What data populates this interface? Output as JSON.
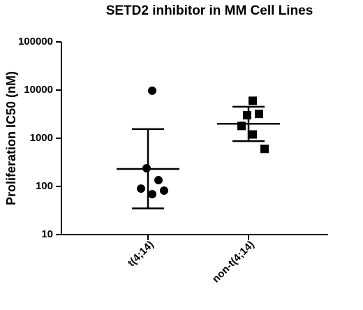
{
  "chart_data": {
    "type": "scatter",
    "title": "SETD2 inhibitor in MM Cell Lines",
    "y_label": "Proliferation IC50 (nM)",
    "categories": [
      "t(4;14)",
      "non-t(4;14)"
    ],
    "log_scale": true,
    "ylim": [
      10,
      100000
    ],
    "yticks": [
      10,
      100,
      1000,
      10000,
      100000
    ],
    "color": "#000000",
    "groups": [
      {
        "marker": "circle",
        "values": [
          9700,
          238,
          135,
          90,
          69,
          82
        ],
        "mean": 230,
        "error_low": 35,
        "error_high": 1550
      },
      {
        "marker": "square",
        "values": [
          6000,
          3000,
          3200,
          1800,
          1200,
          600
        ],
        "mean": 2000,
        "error_low": 870,
        "error_high": 4500
      }
    ]
  }
}
